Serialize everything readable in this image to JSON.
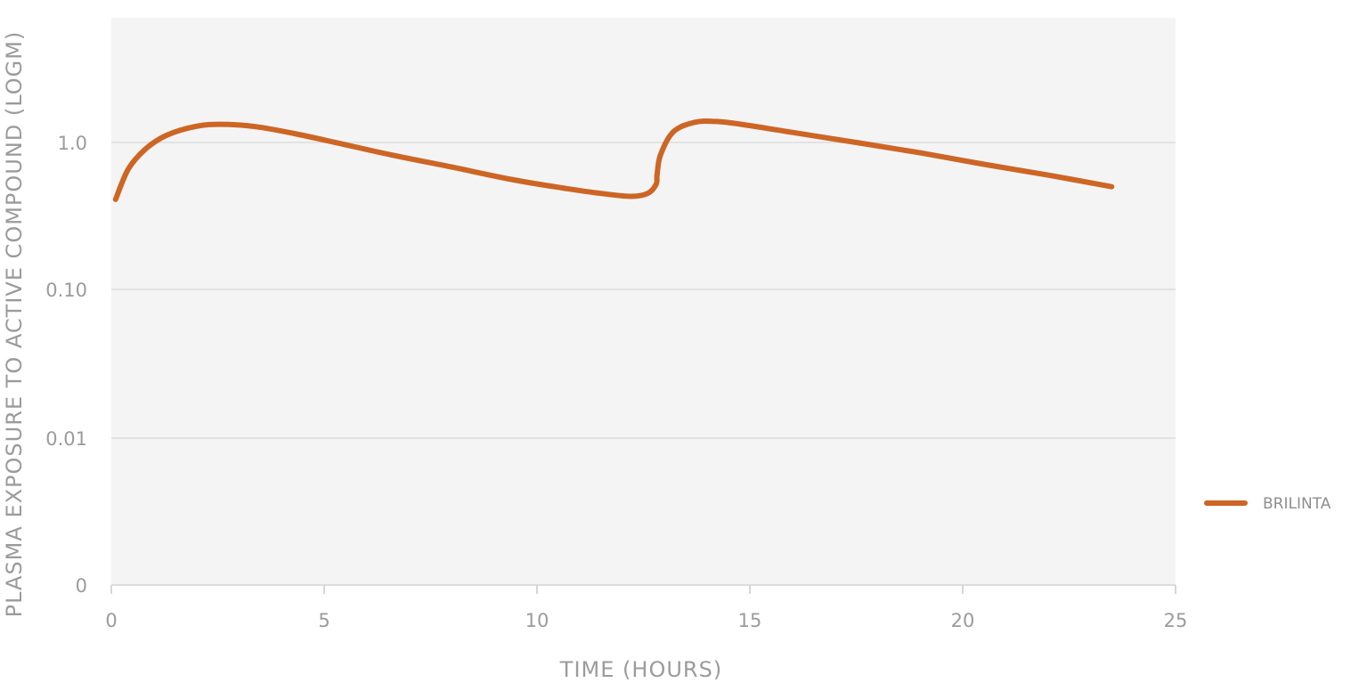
{
  "chart_data": {
    "type": "line",
    "title": "",
    "xlabel": "TIME (HOURS)",
    "ylabel": "PLASMA EXPOSURE TO ACTIVE COMPOUND (LOGM)",
    "xlim": [
      0,
      25
    ],
    "x_ticks": [
      0,
      5,
      10,
      15,
      20,
      25
    ],
    "x_tick_labels": [
      "0",
      "5",
      "10",
      "15",
      "20",
      "25"
    ],
    "y_ticks": [
      0,
      0.01,
      0.1,
      1.0
    ],
    "y_tick_labels": [
      "0",
      "0.01",
      "0.10",
      "1.0"
    ],
    "y_tick_level": [
      0,
      1,
      2,
      3
    ],
    "y_scale": "log",
    "grid": true,
    "legend_position": "right",
    "series": [
      {
        "name": "BRILINTA",
        "color": "#cd6524",
        "x": [
          0.1,
          0.4,
          0.8,
          1.3,
          2.0,
          2.6,
          3.4,
          4.3,
          5.4,
          6.6,
          8.0,
          9.4,
          10.6,
          11.5,
          12.2,
          12.6,
          12.8,
          12.82,
          12.9,
          13.2,
          13.7,
          14.2,
          14.8,
          16.0,
          17.5,
          19.0,
          20.5,
          22.0,
          23.5
        ],
        "y": [
          0.41,
          0.66,
          0.9,
          1.12,
          1.29,
          1.33,
          1.28,
          1.15,
          0.98,
          0.82,
          0.68,
          0.56,
          0.49,
          0.45,
          0.43,
          0.45,
          0.52,
          0.6,
          0.82,
          1.18,
          1.37,
          1.39,
          1.33,
          1.17,
          1.0,
          0.85,
          0.71,
          0.6,
          0.5
        ]
      }
    ]
  }
}
